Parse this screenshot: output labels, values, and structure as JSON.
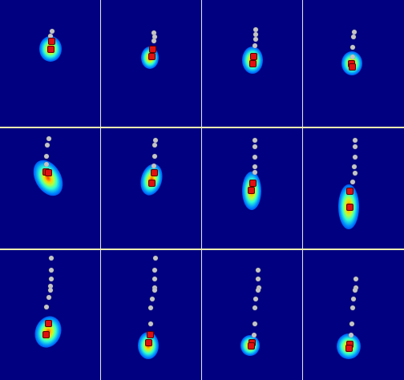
{
  "grid": {
    "rows": 3,
    "cols": 4,
    "panels": [
      {
        "id": "r1c1"
      },
      {
        "id": "r1c2"
      },
      {
        "id": "r1c3"
      },
      {
        "id": "r1c4"
      },
      {
        "id": "r2c1"
      },
      {
        "id": "r2c2"
      },
      {
        "id": "r2c3"
      },
      {
        "id": "r2c4"
      },
      {
        "id": "r3c1"
      },
      {
        "id": "r3c2"
      },
      {
        "id": "r3c3"
      },
      {
        "id": "r3c4"
      }
    ]
  },
  "colors": {
    "background": "#000080",
    "divider": "#e6e6e6",
    "marker_trail": "#c4c4c4",
    "marker_current": "#e01010"
  }
}
